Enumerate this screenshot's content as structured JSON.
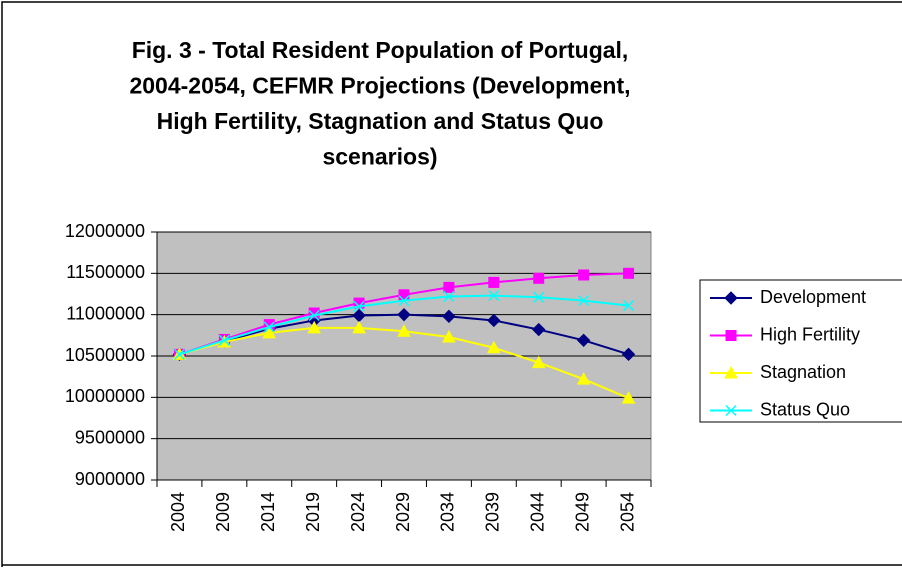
{
  "chart_data": {
    "type": "line",
    "title": [
      "Fig. 3 - Total Resident Population of Portugal,",
      "2004-2054, CEFMR Projections (Development,",
      "High Fertility, Stagnation and Status Quo",
      "scenarios)"
    ],
    "categories": [
      "2004",
      "2009",
      "2014",
      "2019",
      "2024",
      "2029",
      "2034",
      "2039",
      "2044",
      "2049",
      "2054"
    ],
    "series": [
      {
        "name": "Development",
        "color": "#000080",
        "marker": "diamond",
        "values": [
          10520000,
          10680000,
          10830000,
          10930000,
          10990000,
          11000000,
          10980000,
          10930000,
          10820000,
          10690000,
          10520000
        ]
      },
      {
        "name": "High Fertility",
        "color": "#ff00ff",
        "marker": "square",
        "values": [
          10520000,
          10700000,
          10880000,
          11020000,
          11140000,
          11240000,
          11330000,
          11390000,
          11440000,
          11480000,
          11500000
        ]
      },
      {
        "name": "Stagnation",
        "color": "#ffff00",
        "marker": "triangle",
        "values": [
          10520000,
          10670000,
          10780000,
          10840000,
          10840000,
          10800000,
          10730000,
          10600000,
          10420000,
          10220000,
          9990000
        ]
      },
      {
        "name": "Status Quo",
        "color": "#00ffff",
        "marker": "x",
        "values": [
          10520000,
          10690000,
          10850000,
          10990000,
          11100000,
          11170000,
          11220000,
          11230000,
          11210000,
          11170000,
          11110000
        ]
      }
    ],
    "ylim": [
      9000000,
      12000000
    ],
    "yticks": [
      9000000,
      9500000,
      10000000,
      10500000,
      11000000,
      11500000,
      12000000
    ],
    "grid": true,
    "legend": "right",
    "plot_background": "#c0c0c0"
  }
}
